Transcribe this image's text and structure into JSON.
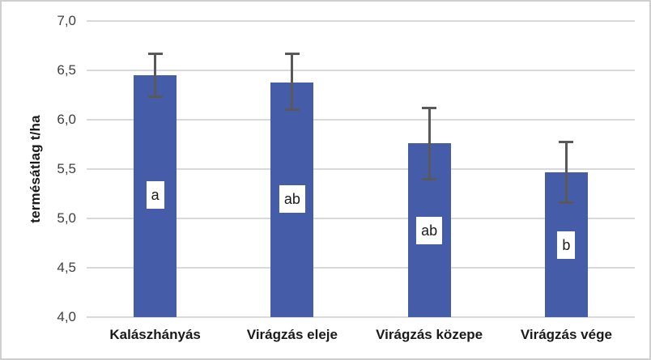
{
  "chart_data": {
    "type": "bar",
    "title": "",
    "ylabel": "termésátlag t/ha",
    "xlabel": "",
    "categories": [
      "Kalászhányás",
      "Virágzás eleje",
      "Virágzás közepe",
      "Virágzás vége"
    ],
    "values": [
      6.45,
      6.38,
      5.76,
      5.47
    ],
    "error_bars": {
      "upper": [
        6.67,
        6.67,
        6.12,
        5.78
      ],
      "lower": [
        6.24,
        6.11,
        5.4,
        5.16
      ]
    },
    "significance_letters": [
      {
        "text": "a",
        "y": 5.24
      },
      {
        "text": "ab",
        "y": 5.2
      },
      {
        "text": "ab",
        "y": 4.88
      },
      {
        "text": "b",
        "y": 4.73
      }
    ],
    "ylim": [
      4.0,
      7.0
    ],
    "ytick_step": 0.5,
    "ytick_labels": [
      "4,0",
      "4,5",
      "5,0",
      "5,5",
      "6,0",
      "6,5",
      "7,0"
    ],
    "grid": true,
    "legend_position": "none",
    "colors": {
      "bar_fill": "#455CA8",
      "error_bar": "#595959",
      "gridline": "#D9D9D9",
      "tick_text": "#404040",
      "axis_title_text": "#1A1A1A",
      "category_text": "#1A1A1A",
      "label_box_bg": "#FFFFFF",
      "label_box_text": "#1A1A1A",
      "chart_border": "#CFCFCF",
      "background": "#FFFFFF"
    }
  }
}
